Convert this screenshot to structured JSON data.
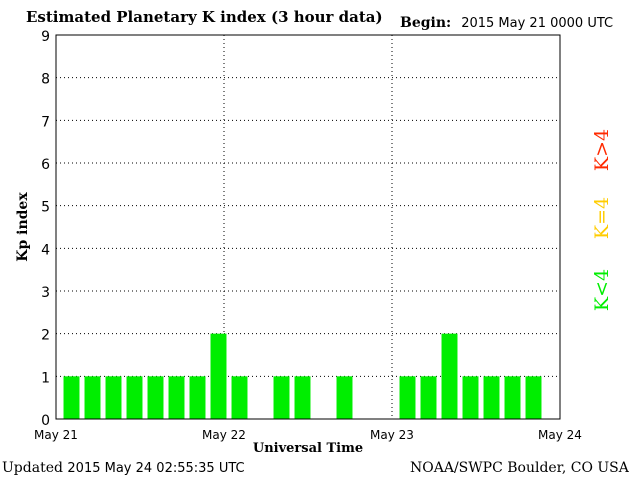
{
  "header": {
    "title": "Estimated Planetary K index (3 hour data)",
    "begin_label": "Begin:",
    "begin_value": "2015 May 21 0000 UTC"
  },
  "footer": {
    "updated_label": "Updated",
    "updated_value": "2015 May 24 02:55:35 UTC",
    "credit": "NOAA/SWPC Boulder, CO USA"
  },
  "legend": {
    "items": [
      {
        "label": "K>4",
        "color": "#ff2a00"
      },
      {
        "label": "K=4",
        "color": "#ffcc00"
      },
      {
        "label": "K<4",
        "color": "#00ee00"
      }
    ],
    "placement": "right"
  },
  "chart_data": {
    "type": "bar",
    "title": "Estimated Planetary K index (3 hour data)",
    "xlabel": "Universal Time",
    "ylabel": "Kp index",
    "ylim": [
      0,
      9
    ],
    "yticks": [
      "0",
      "1",
      "2",
      "3",
      "4",
      "5",
      "6",
      "7",
      "8",
      "9"
    ],
    "xticks": [
      "May 21",
      "May 22",
      "May 23",
      "May 24"
    ],
    "grid": "dotted",
    "interval_hours": 3,
    "categories": [
      "May 21 00",
      "May 21 03",
      "May 21 06",
      "May 21 09",
      "May 21 12",
      "May 21 15",
      "May 21 18",
      "May 21 21",
      "May 22 00",
      "May 22 03",
      "May 22 06",
      "May 22 09",
      "May 22 12",
      "May 22 15",
      "May 22 18",
      "May 22 21",
      "May 23 00",
      "May 23 03",
      "May 23 06",
      "May 23 09",
      "May 23 12",
      "May 23 15",
      "May 23 18",
      "May 23 21"
    ],
    "values": [
      1,
      1,
      1,
      1,
      1,
      1,
      1,
      2,
      1,
      0,
      1,
      1,
      0,
      1,
      0,
      0,
      1,
      1,
      2,
      1,
      1,
      1,
      1,
      0
    ],
    "bar_color": "#00ee00"
  }
}
